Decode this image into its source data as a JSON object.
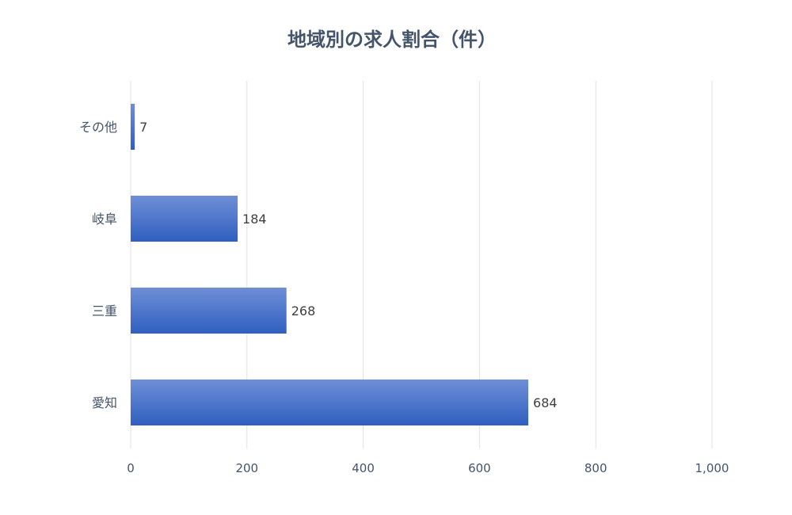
{
  "chart_data": {
    "type": "bar",
    "orientation": "horizontal",
    "title": "地域別の求人割合（件）",
    "xlabel": "",
    "ylabel": "",
    "categories": [
      "その他",
      "岐阜",
      "三重",
      "愛知"
    ],
    "values": [
      7,
      184,
      268,
      684
    ],
    "data_labels": [
      "7",
      "184",
      "268",
      "684"
    ],
    "xlim": [
      0,
      1000
    ],
    "x_ticks": [
      0,
      200,
      400,
      600,
      800,
      1000
    ],
    "x_tick_labels": [
      "0",
      "200",
      "400",
      "600",
      "800",
      "1,000"
    ],
    "grid": true,
    "legend": "none",
    "colors": {
      "bar_top": "#6f8fd6",
      "bar_bottom": "#2f5fc0",
      "title": "#44546a",
      "axis_text": "#44546a",
      "gridline": "#e2e2e2"
    }
  }
}
